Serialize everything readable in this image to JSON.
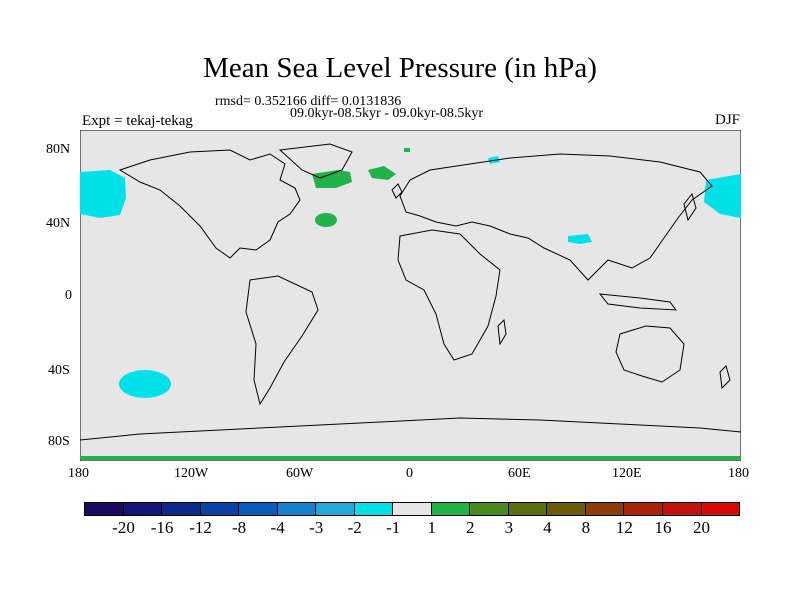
{
  "title": "Mean Sea Level Pressure (in hPa)",
  "stats": "rmsd= 0.352166 diff= 0.0131836",
  "period": "09.0kyr-08.5kyr - 09.0kyr-08.5kyr",
  "experiment": "Expt = tekaj-tekag",
  "season": "DJF",
  "lat_ticks": [
    "80N",
    "40N",
    "0",
    "40S",
    "80S"
  ],
  "lon_ticks": [
    "180",
    "120W",
    "60W",
    "0",
    "60E",
    "120E",
    "180"
  ],
  "colors": {
    "background": "#e6e6e6",
    "negative_small": "#00e0e8",
    "positive_small": "#22b24a",
    "coast": "#000000"
  },
  "colorbar": {
    "labels": [
      "-20",
      "-16",
      "-12",
      "-8",
      "-4",
      "-3",
      "-2",
      "-1",
      "1",
      "2",
      "3",
      "4",
      "8",
      "12",
      "16",
      "20"
    ],
    "colors": [
      "#1a0a5e",
      "#13157a",
      "#0d2a8a",
      "#0b42a3",
      "#0a5cbc",
      "#1684cc",
      "#22aad6",
      "#00e0e8",
      "#e6e6e6",
      "#22b24a",
      "#4b8a1e",
      "#5d6e0c",
      "#6b5a06",
      "#8a3e06",
      "#a8230a",
      "#c0110f",
      "#d60808"
    ]
  }
}
